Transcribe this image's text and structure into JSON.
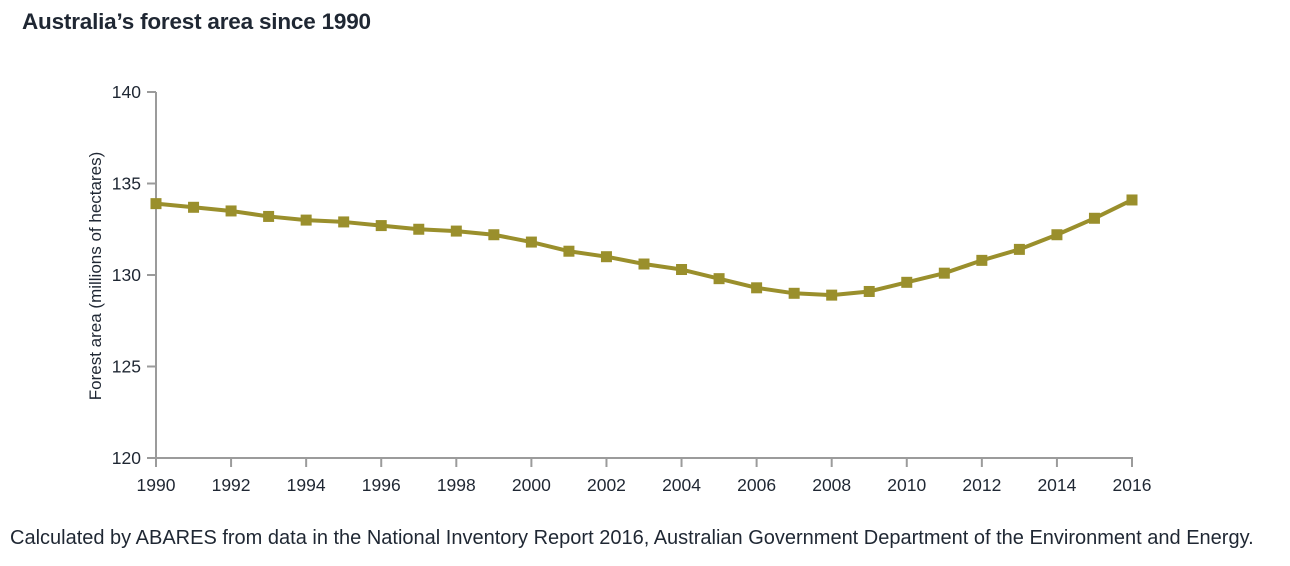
{
  "page": {
    "title": "Australia’s forest area since 1990",
    "caption": "Calculated by ABARES from data in the National Inventory Report 2016, Australian Government Department of the Environment and Energy."
  },
  "chart_data": {
    "type": "line",
    "title": "Australia’s forest area since 1990",
    "xlabel": "",
    "ylabel": "Forest area (millions of hectares)",
    "x": [
      1990,
      1991,
      1992,
      1993,
      1994,
      1995,
      1996,
      1997,
      1998,
      1999,
      2000,
      2001,
      2002,
      2003,
      2004,
      2005,
      2006,
      2007,
      2008,
      2009,
      2010,
      2011,
      2012,
      2013,
      2014,
      2015,
      2016
    ],
    "series": [
      {
        "name": "Forest area (millions of hectares)",
        "values": [
          133.9,
          133.7,
          133.5,
          133.2,
          133.0,
          132.9,
          132.7,
          132.5,
          132.4,
          132.2,
          131.8,
          131.3,
          131.0,
          130.6,
          130.3,
          129.8,
          129.3,
          129.0,
          128.9,
          129.1,
          129.6,
          130.1,
          130.8,
          131.4,
          132.2,
          133.1,
          134.1
        ]
      }
    ],
    "ylim": [
      120,
      140
    ],
    "yticks": [
      120,
      125,
      130,
      135,
      140
    ],
    "xticks": [
      1990,
      1992,
      1994,
      1996,
      1998,
      2000,
      2002,
      2004,
      2006,
      2008,
      2010,
      2012,
      2014,
      2016
    ],
    "grid": false,
    "legend": "none",
    "marker": "square",
    "source": "Calculated by ABARES from data in the National Inventory Report 2016, Australian Government Department of the Environment and Energy.",
    "colors": {
      "line": "#9A8F2C",
      "axis": "#9B9B9B",
      "text": "#1F2733"
    }
  }
}
